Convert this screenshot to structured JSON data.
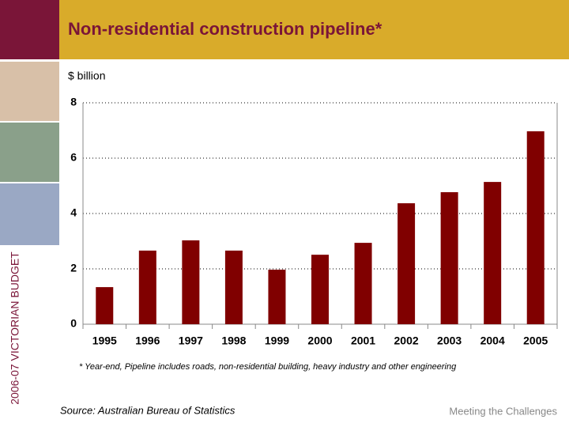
{
  "chart_data": {
    "type": "bar",
    "title": "Non-residential construction pipeline*",
    "y_label": "$ billion",
    "categories": [
      "1995",
      "1996",
      "1997",
      "1998",
      "1999",
      "2000",
      "2001",
      "2002",
      "2003",
      "2004",
      "2005"
    ],
    "values": [
      1.34,
      2.66,
      3.03,
      2.66,
      1.97,
      2.51,
      2.94,
      4.37,
      4.77,
      5.14,
      6.97
    ],
    "color": "#800000",
    "ylim": [
      0,
      8
    ],
    "yticks": [
      0,
      2,
      4,
      6,
      8
    ],
    "grid": true
  },
  "footnote": "* Year-end, Pipeline includes roads, non-residential building, heavy industry and other engineering",
  "source": "Source: Australian Bureau of Statistics",
  "sidebar_label": "2006-07 VICTORIAN BUDGET",
  "tagline": "Meeting the Challenges"
}
